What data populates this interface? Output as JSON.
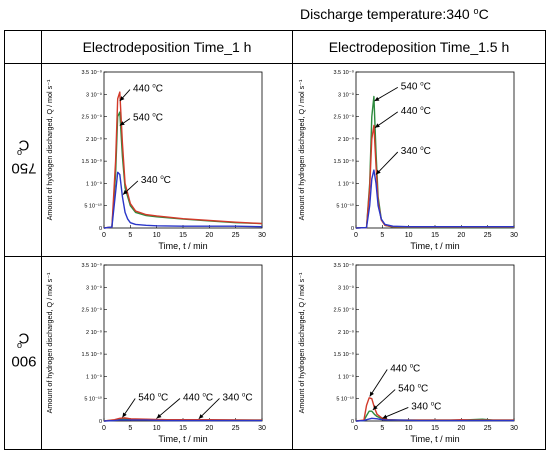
{
  "caption": {
    "text": "Discharge temperature:340 ",
    "unit_sup": "o",
    "unit": "C"
  },
  "columns": [
    "Electrodeposition Time_1 h",
    "Electrodeposition Time_1.5 h"
  ],
  "rows": [
    {
      "label": "750 ",
      "sup": "o",
      "unit": "C"
    },
    {
      "label": "900 ",
      "sup": "o",
      "unit": "C"
    }
  ],
  "colors": {
    "540": "#2e8b3e",
    "440": "#d23a2a",
    "340": "#2a36c8",
    "annot": "#000000"
  },
  "chart_data": [
    {
      "type": "line",
      "panel": "750C-1h",
      "xlabel": "Time, t / min",
      "ylabel": "Amount of hydrogen discharged, Q / mol s⁻¹",
      "xlim": [
        0,
        30
      ],
      "ylim": [
        0,
        3.5e-09
      ],
      "xticks": [
        "0",
        "5",
        "10",
        "15",
        "20",
        "25",
        "30"
      ],
      "yticks": [
        "0",
        "5 10⁻¹⁰",
        "1 10⁻⁹",
        "1.5 10⁻⁹",
        "2 10⁻⁹",
        "2.5 10⁻⁹",
        "3 10⁻⁹",
        "3.5 10⁻⁹"
      ],
      "series": [
        {
          "key": "540",
          "x": [
            0,
            1.5,
            2.2,
            2.6,
            3.0,
            3.5,
            4.0,
            5,
            6,
            8,
            10,
            15,
            20,
            25,
            30
          ],
          "y": [
            0,
            2e-11,
            1.2e-09,
            2.5e-09,
            2.6e-09,
            1.6e-09,
            9e-10,
            5e-10,
            3.5e-10,
            2.8e-10,
            2.5e-10,
            2e-10,
            1.6e-10,
            1.2e-10,
            1e-10
          ]
        },
        {
          "key": "440",
          "x": [
            0,
            1.5,
            2.2,
            2.6,
            3.0,
            3.5,
            4.0,
            5,
            6,
            8,
            10,
            15,
            20,
            25,
            30
          ],
          "y": [
            0,
            2e-11,
            1.5e-09,
            2.9e-09,
            3.05e-09,
            1.9e-09,
            1e-09,
            5.5e-10,
            3.8e-10,
            3e-10,
            2.7e-10,
            2.1e-10,
            1.7e-10,
            1.3e-10,
            1e-10
          ]
        },
        {
          "key": "340",
          "x": [
            0,
            1.5,
            2.2,
            2.6,
            3.0,
            3.5,
            4.0,
            4.5,
            5,
            6,
            8,
            10,
            15,
            20,
            25,
            30
          ],
          "y": [
            0,
            2e-11,
            8e-10,
            1.25e-09,
            1.2e-09,
            7e-10,
            3.5e-10,
            2e-10,
            1.2e-10,
            8e-11,
            6e-11,
            5e-11,
            4e-11,
            4e-11,
            4e-11,
            3e-11
          ]
        }
      ],
      "annotations": [
        {
          "text": "440 ",
          "sup": "o",
          "unit": "C",
          "tx": 5.5,
          "ty": 3.15e-09,
          "ax": 3.0,
          "ay": 2.85e-09
        },
        {
          "text": "540 ",
          "sup": "o",
          "unit": "C",
          "tx": 5.5,
          "ty": 2.5e-09,
          "ax": 3.0,
          "ay": 2.3e-09
        },
        {
          "text": "340 ",
          "sup": "o",
          "unit": "C",
          "tx": 7.0,
          "ty": 1.1e-09,
          "ax": 3.6,
          "ay": 7.5e-10
        }
      ]
    },
    {
      "type": "line",
      "panel": "750C-1.5h",
      "xlabel": "Time, t / min",
      "ylabel": "Amount of hydrogen discharged, Q / mol s⁻¹",
      "xlim": [
        0,
        30
      ],
      "ylim": [
        0,
        3.5e-09
      ],
      "xticks": [
        "0",
        "5",
        "10",
        "15",
        "20",
        "25",
        "30"
      ],
      "yticks": [
        "0",
        "5 10⁻¹⁰",
        "1 10⁻⁹",
        "1.5 10⁻⁹",
        "2 10⁻⁹",
        "2.5 10⁻⁹",
        "3 10⁻⁹",
        "3.5 10⁻⁹"
      ],
      "series": [
        {
          "key": "540",
          "x": [
            0,
            2.0,
            2.6,
            3.0,
            3.4,
            3.8,
            4.2,
            4.8,
            5.5,
            7,
            10,
            15,
            20,
            25,
            30
          ],
          "y": [
            0,
            1e-11,
            1e-09,
            2.5e-09,
            2.95e-09,
            1.7e-09,
            7e-10,
            2e-10,
            6e-11,
            2e-11,
            1e-11,
            1e-11,
            1e-11,
            1e-11,
            1e-11
          ]
        },
        {
          "key": "440",
          "x": [
            0,
            2.0,
            2.6,
            3.0,
            3.4,
            3.8,
            4.2,
            4.8,
            5.5,
            7,
            10,
            15,
            20,
            25,
            30
          ],
          "y": [
            0,
            1e-11,
            9e-10,
            2e-09,
            2.3e-09,
            1.4e-09,
            6e-10,
            1.8e-10,
            6e-11,
            3e-11,
            2e-11,
            2e-11,
            2e-11,
            2e-11,
            2e-11
          ]
        },
        {
          "key": "340",
          "x": [
            0,
            2.0,
            2.6,
            3.0,
            3.4,
            3.8,
            4.2,
            4.8,
            5.5,
            7,
            10,
            15,
            20,
            25,
            30
          ],
          "y": [
            0,
            1e-11,
            5e-10,
            1.1e-09,
            1.3e-09,
            1e-09,
            5e-10,
            2e-10,
            8e-11,
            4e-11,
            3e-11,
            3e-11,
            3e-11,
            3e-11,
            3e-11
          ]
        }
      ],
      "annotations": [
        {
          "text": "540 ",
          "sup": "o",
          "unit": "C",
          "tx": 8.5,
          "ty": 3.2e-09,
          "ax": 3.5,
          "ay": 2.85e-09
        },
        {
          "text": "440 ",
          "sup": "o",
          "unit": "C",
          "tx": 8.5,
          "ty": 2.65e-09,
          "ax": 3.6,
          "ay": 2.25e-09
        },
        {
          "text": "340 ",
          "sup": "o",
          "unit": "C",
          "tx": 8.5,
          "ty": 1.75e-09,
          "ax": 3.8,
          "ay": 1.2e-09
        }
      ]
    },
    {
      "type": "line",
      "panel": "900C-1h",
      "xlabel": "Time, t / min",
      "ylabel": "Amount of hydrogen discharged, Q / mol s⁻¹",
      "xlim": [
        0,
        30
      ],
      "ylim": [
        0,
        3.5e-09
      ],
      "xticks": [
        "0",
        "5",
        "10",
        "15",
        "20",
        "25",
        "30"
      ],
      "yticks": [
        "0",
        "5 10⁻¹⁰",
        "1 10⁻⁹",
        "1.5 10⁻⁹",
        "2 10⁻⁹",
        "2.5 10⁻⁹",
        "3 10⁻⁹",
        "3.5 10⁻⁹"
      ],
      "series": [
        {
          "key": "540",
          "x": [
            0,
            2,
            3,
            4,
            5,
            8,
            12,
            20,
            30
          ],
          "y": [
            0,
            2e-11,
            4e-11,
            5e-11,
            4e-11,
            3e-11,
            3e-11,
            2e-11,
            2e-11
          ]
        },
        {
          "key": "440",
          "x": [
            0,
            2,
            3,
            4,
            5,
            8,
            12,
            20,
            30
          ],
          "y": [
            0,
            3e-11,
            6e-11,
            7e-11,
            5e-11,
            4e-11,
            3e-11,
            3e-11,
            2e-11
          ]
        },
        {
          "key": "340",
          "x": [
            0,
            2,
            3,
            4,
            5,
            8,
            12,
            20,
            30
          ],
          "y": [
            0,
            1e-11,
            2e-11,
            2e-11,
            2e-11,
            2e-11,
            1e-11,
            1e-11,
            1e-11
          ]
        }
      ],
      "annotations": [
        {
          "text": "540 ",
          "sup": "o",
          "unit": "C",
          "tx": 6.5,
          "ty": 5.5e-10,
          "ax": 3.5,
          "ay": 8e-11
        },
        {
          "text": "440 ",
          "sup": "o",
          "unit": "C",
          "tx": 15.0,
          "ty": 5.5e-10,
          "ax": 10.0,
          "ay": 6e-11
        },
        {
          "text": "340 ",
          "sup": "o",
          "unit": "C",
          "tx": 22.5,
          "ty": 5.5e-10,
          "ax": 18.0,
          "ay": 5e-11
        }
      ]
    },
    {
      "type": "line",
      "panel": "900C-1.5h",
      "xlabel": "Time, t / min",
      "ylabel": "Amount of hydrogen discharged, Q / mol s⁻¹",
      "xlim": [
        0,
        30
      ],
      "ylim": [
        0,
        3.5e-09
      ],
      "xticks": [
        "0",
        "5",
        "10",
        "15",
        "20",
        "25",
        "30"
      ],
      "yticks": [
        "0",
        "5 10⁻¹⁰",
        "1 10⁻⁹",
        "1.5 10⁻⁹",
        "2 10⁻⁹",
        "2.5 10⁻⁹",
        "3 10⁻⁹",
        "3.5 10⁻⁹"
      ],
      "series": [
        {
          "key": "540",
          "x": [
            0,
            1.5,
            2.0,
            2.5,
            3.0,
            3.5,
            4.0,
            5,
            6,
            8,
            12,
            20,
            24,
            26,
            30
          ],
          "y": [
            0,
            1e-11,
            1.2e-10,
            2.2e-10,
            2.2e-10,
            1.5e-10,
            1e-10,
            5e-11,
            3e-11,
            2e-11,
            2e-11,
            2e-11,
            4e-11,
            2e-11,
            2e-11
          ]
        },
        {
          "key": "440",
          "x": [
            0,
            1.5,
            2.0,
            2.5,
            3.0,
            3.5,
            4.0,
            5,
            6,
            8,
            12,
            18,
            20,
            22,
            30
          ],
          "y": [
            0,
            2e-11,
            3.5e-10,
            5.2e-10,
            5e-10,
            3e-10,
            1.5e-10,
            6e-11,
            3e-11,
            2e-11,
            2e-11,
            2e-11,
            3e-11,
            2e-11,
            2e-11
          ]
        },
        {
          "key": "340",
          "x": [
            0,
            1.5,
            2.0,
            3.0,
            4.0,
            5,
            6,
            8,
            12,
            20,
            30
          ],
          "y": [
            0,
            1e-11,
            3e-11,
            6e-11,
            5e-11,
            3e-11,
            2e-11,
            2e-11,
            1e-11,
            1e-11,
            1e-11
          ]
        }
      ],
      "annotations": [
        {
          "text": "440 ",
          "sup": "o",
          "unit": "C",
          "tx": 6.5,
          "ty": 1.2e-09,
          "ax": 2.6,
          "ay": 5.5e-10
        },
        {
          "text": "540 ",
          "sup": "o",
          "unit": "C",
          "tx": 8.0,
          "ty": 7.5e-10,
          "ax": 3.2,
          "ay": 2.5e-10
        },
        {
          "text": "340 ",
          "sup": "o",
          "unit": "C",
          "tx": 10.5,
          "ty": 3.5e-10,
          "ax": 5.0,
          "ay": 6e-11
        }
      ]
    }
  ]
}
